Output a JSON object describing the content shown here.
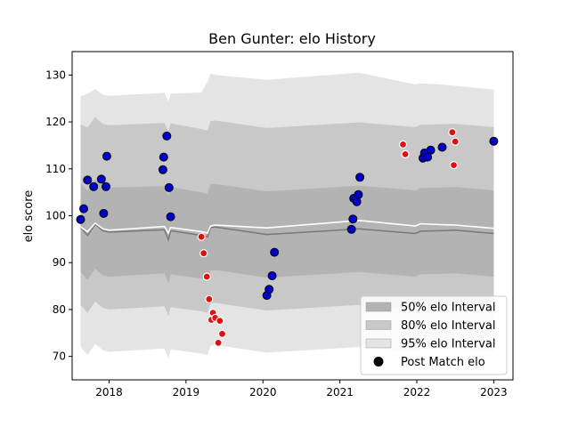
{
  "chart_data": {
    "type": "scatter",
    "title": "Ben Gunter: elo History",
    "xlabel": "",
    "ylabel": "elo score",
    "xlim": [
      2017.52,
      2023.25
    ],
    "ylim": [
      65,
      135
    ],
    "x_ticks": [
      2018,
      2019,
      2020,
      2021,
      2022,
      2023
    ],
    "x_tick_labels": [
      "2018",
      "2019",
      "2020",
      "2021",
      "2022",
      "2023"
    ],
    "y_ticks": [
      70,
      80,
      90,
      100,
      110,
      120,
      130
    ],
    "y_tick_labels": [
      "70",
      "80",
      "90",
      "100",
      "110",
      "120",
      "130"
    ],
    "legend": {
      "location": "lower-right",
      "entries": [
        {
          "label": "50% elo Interval",
          "color": "#b3b3b3",
          "kind": "patch"
        },
        {
          "label": "80% elo Interval",
          "color": "#c8c8c8",
          "kind": "patch"
        },
        {
          "label": "95% elo Interval",
          "color": "#e4e4e4",
          "kind": "patch"
        },
        {
          "label": "Post Match elo",
          "color": "#000000",
          "kind": "marker"
        }
      ]
    },
    "bands": {
      "x": [
        2017.63,
        2017.72,
        2017.82,
        2017.92,
        2018.0,
        2018.72,
        2018.77,
        2018.8,
        2019.2,
        2019.28,
        2019.32,
        2019.38,
        2020.05,
        2021.25,
        2021.98,
        2022.05,
        2022.3,
        2022.5,
        2023.0
      ],
      "median": [
        97.5,
        95.8,
        98.2,
        96.8,
        96.5,
        97.0,
        94.9,
        96.8,
        95.8,
        95.5,
        97.5,
        97.6,
        96.0,
        97.2,
        96.2,
        96.7,
        96.8,
        96.9,
        96.2
      ],
      "p50": {
        "lower": [
          88.0,
          86.3,
          88.7,
          87.3,
          87.0,
          87.7,
          85.6,
          87.5,
          86.6,
          86.3,
          88.3,
          88.4,
          86.8,
          88.0,
          87.0,
          87.5,
          87.6,
          87.7,
          87.0
        ],
        "upper": [
          107.0,
          105.3,
          107.7,
          106.3,
          106.0,
          106.3,
          104.2,
          106.1,
          105.0,
          104.7,
          106.7,
          106.8,
          105.2,
          106.4,
          105.4,
          105.9,
          106.0,
          106.1,
          105.4
        ]
      },
      "p80": {
        "lower": [
          81.0,
          79.3,
          81.7,
          80.3,
          80.0,
          80.7,
          78.6,
          80.5,
          79.6,
          79.3,
          81.3,
          81.4,
          79.8,
          81.0,
          80.0,
          80.5,
          80.6,
          80.7,
          80.0
        ]
      },
      "p95": {
        "lower": [
          72.0,
          70.3,
          72.7,
          71.3,
          71.0,
          71.7,
          69.6,
          71.5,
          70.6,
          70.3,
          72.3,
          72.4,
          70.8,
          72.0,
          71.0,
          71.5,
          71.6,
          71.7,
          71.0
        ],
        "upper": [
          125.5,
          126.0,
          127.0,
          125.8,
          125.6,
          126.2,
          124.4,
          126.0,
          126.3,
          128.6,
          130.3,
          130.0,
          129.0,
          130.5,
          128.0,
          128.2,
          128.0,
          127.7,
          126.9
        ]
      },
      "p80_upper": [
        119.5,
        118.8,
        121.0,
        119.6,
        119.3,
        119.8,
        118.0,
        119.7,
        118.5,
        118.2,
        120.2,
        120.3,
        118.7,
        119.9,
        118.9,
        119.4,
        119.5,
        119.6,
        118.9
      ],
      "white_line": [
        97.6,
        96.6,
        98.4,
        97.2,
        96.9,
        97.7,
        96.3,
        97.5,
        96.6,
        96.3,
        97.8,
        98.0,
        97.4,
        99.0,
        97.8,
        98.3,
        98.1,
        98.0,
        97.3
      ]
    },
    "series": [
      {
        "name": "Post Match elo",
        "color": "#0000cc",
        "x": [
          2017.63,
          2017.67,
          2017.72,
          2017.8,
          2017.9,
          2017.93,
          2017.96,
          2017.97,
          2018.7,
          2018.71,
          2018.75,
          2018.78,
          2018.8,
          2020.05,
          2020.08,
          2020.12,
          2020.15,
          2021.15,
          2021.17,
          2021.18,
          2021.22,
          2021.24,
          2021.26,
          2022.08,
          2022.1,
          2022.14,
          2022.18,
          2022.33,
          2023.0
        ],
        "y": [
          99.2,
          101.5,
          107.6,
          106.2,
          107.8,
          100.5,
          106.2,
          112.7,
          109.8,
          112.5,
          117.0,
          106.0,
          99.8,
          83.0,
          84.3,
          87.2,
          92.2,
          97.1,
          99.3,
          103.7,
          103.0,
          104.5,
          108.2,
          112.3,
          113.4,
          112.5,
          114.0,
          114.6,
          115.9
        ]
      },
      {
        "name": "",
        "color": "#dd1111",
        "x": [
          2019.2,
          2019.23,
          2019.27,
          2019.3,
          2019.33,
          2019.35,
          2019.38,
          2019.42,
          2019.44,
          2019.47,
          2021.82,
          2021.85,
          2022.46,
          2022.48,
          2022.5
        ],
        "y": [
          95.5,
          92.0,
          87.0,
          82.2,
          77.8,
          79.3,
          78.2,
          72.9,
          77.6,
          74.8,
          115.2,
          113.1,
          117.8,
          110.8,
          115.8
        ]
      }
    ]
  }
}
